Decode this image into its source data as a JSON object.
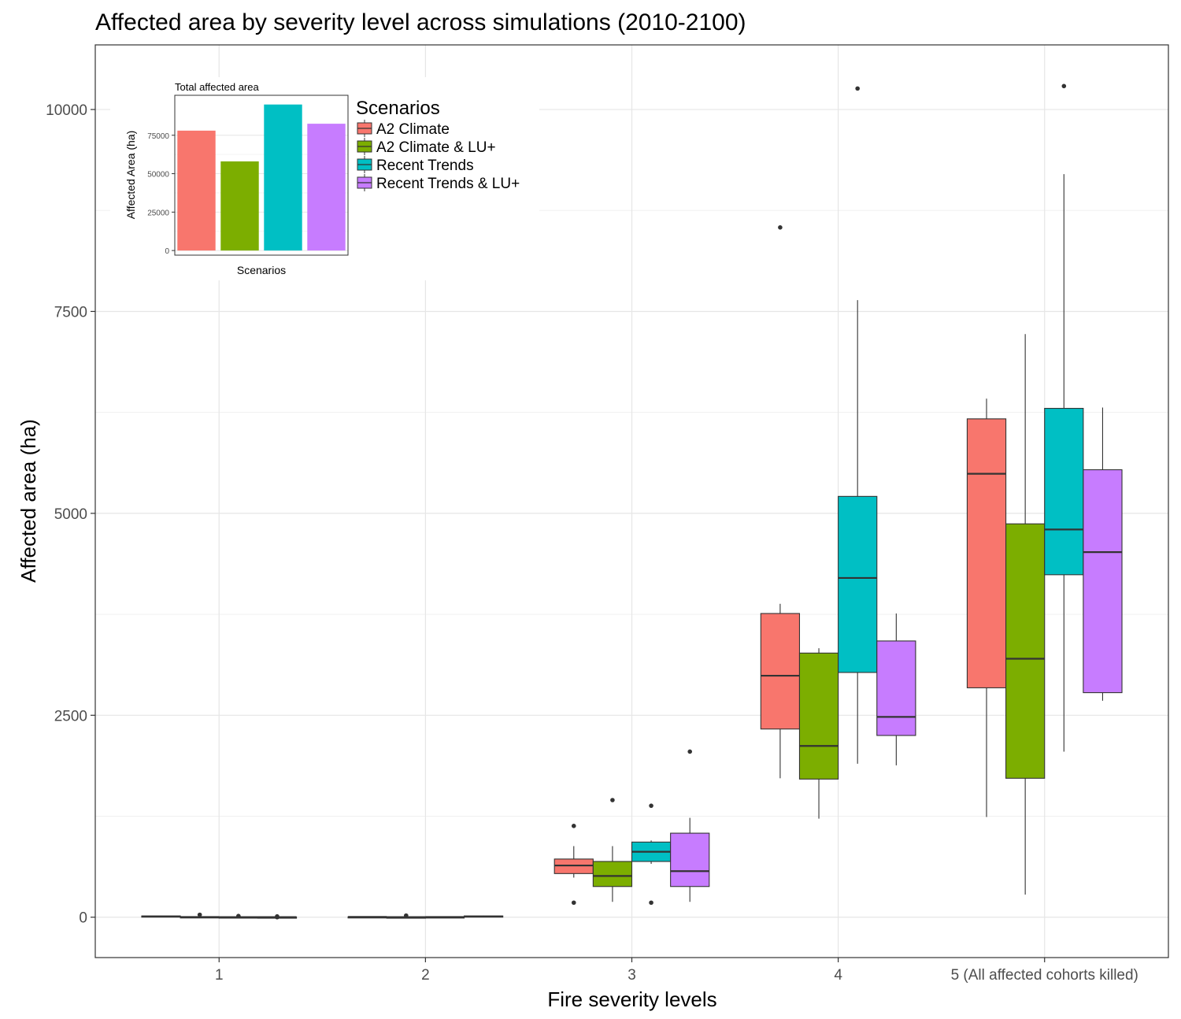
{
  "chart_data": [
    {
      "type": "boxplot",
      "title": "Affected area by severity level across simulations (2010-2100)",
      "xlabel": "Fire severity levels",
      "ylabel": "Affected area (ha)",
      "ylim": [
        -500,
        10800
      ],
      "yticks": [
        0,
        2500,
        5000,
        7500,
        10000
      ],
      "grid": true,
      "legend": {
        "title": "Scenarios",
        "placement": "top-left (inside plot)",
        "entries": [
          "A2 Climate",
          "A2 Climate & LU+",
          "Recent Trends",
          "Recent Trends & LU+"
        ]
      },
      "colors": [
        "#F8766D",
        "#7CAE00",
        "#00BFC4",
        "#C77CFF"
      ],
      "categories": [
        "1",
        "2",
        "3",
        "4",
        "5 (All affected cohorts killed)"
      ],
      "series": [
        {
          "name": "A2 Climate",
          "boxes": [
            {
              "min": 0,
              "q1": 5,
              "median": 10,
              "q3": 15,
              "max": 20,
              "outliers": []
            },
            {
              "min": 0,
              "q1": 0,
              "median": 3,
              "q3": 5,
              "max": 8,
              "outliers": []
            },
            {
              "min": 490,
              "q1": 540,
              "median": 640,
              "q3": 720,
              "max": 880,
              "outliers": [
                1130,
                180
              ]
            },
            {
              "min": 1720,
              "q1": 2330,
              "median": 2990,
              "q3": 3760,
              "max": 3880,
              "outliers": [
                8540
              ]
            },
            {
              "min": 1240,
              "q1": 2840,
              "median": 5490,
              "q3": 6170,
              "max": 6420,
              "outliers": []
            }
          ]
        },
        {
          "name": "A2 Climate & LU+",
          "boxes": [
            {
              "min": 0,
              "q1": 0,
              "median": 2,
              "q3": 5,
              "max": 10,
              "outliers": [
                30
              ]
            },
            {
              "min": 0,
              "q1": 0,
              "median": 1,
              "q3": 2,
              "max": 5,
              "outliers": [
                20
              ]
            },
            {
              "min": 190,
              "q1": 380,
              "median": 510,
              "q3": 690,
              "max": 880,
              "outliers": [
                1450
              ]
            },
            {
              "min": 1220,
              "q1": 1710,
              "median": 2120,
              "q3": 3270,
              "max": 3330,
              "outliers": []
            },
            {
              "min": 280,
              "q1": 1720,
              "median": 3200,
              "q3": 4870,
              "max": 7220,
              "outliers": []
            }
          ]
        },
        {
          "name": "Recent Trends",
          "boxes": [
            {
              "min": 0,
              "q1": 0,
              "median": 1,
              "q3": 3,
              "max": 5,
              "outliers": [
                15
              ]
            },
            {
              "min": 0,
              "q1": 1,
              "median": 2,
              "q3": 4,
              "max": 8,
              "outliers": []
            },
            {
              "min": 660,
              "q1": 690,
              "median": 810,
              "q3": 930,
              "max": 950,
              "outliers": [
                1380,
                180
              ]
            },
            {
              "min": 1900,
              "q1": 3030,
              "median": 4200,
              "q3": 5210,
              "max": 7640,
              "outliers": [
                10260
              ]
            },
            {
              "min": 2050,
              "q1": 4240,
              "median": 4800,
              "q3": 6300,
              "max": 9200,
              "outliers": [
                10290
              ]
            }
          ]
        },
        {
          "name": "Recent Trends & LU+",
          "boxes": [
            {
              "min": 0,
              "q1": 0,
              "median": 1,
              "q3": 2,
              "max": 5,
              "outliers": [
                10,
                0
              ]
            },
            {
              "min": 0,
              "q1": 5,
              "median": 10,
              "q3": 15,
              "max": 20,
              "outliers": []
            },
            {
              "min": 190,
              "q1": 380,
              "median": 570,
              "q3": 1040,
              "max": 1230,
              "outliers": [
                2050
              ]
            },
            {
              "min": 1880,
              "q1": 2250,
              "median": 2480,
              "q3": 3420,
              "max": 3760,
              "outliers": []
            },
            {
              "min": 2680,
              "q1": 2780,
              "median": 4520,
              "q3": 5540,
              "max": 6310,
              "outliers": []
            }
          ]
        }
      ]
    },
    {
      "type": "bar",
      "title": "Total affected area",
      "xlabel": "Scenarios",
      "ylabel": "Affected Area (ha)",
      "ylim": [
        -3000,
        101000
      ],
      "yticks": [
        0,
        25000,
        50000,
        75000
      ],
      "categories": [
        "A2 Climate",
        "A2 Climate & LU+",
        "Recent Trends",
        "Recent Trends & LU+"
      ],
      "values": [
        78000,
        58000,
        95000,
        82500
      ],
      "colors": [
        "#F8766D",
        "#7CAE00",
        "#00BFC4",
        "#C77CFF"
      ]
    }
  ]
}
